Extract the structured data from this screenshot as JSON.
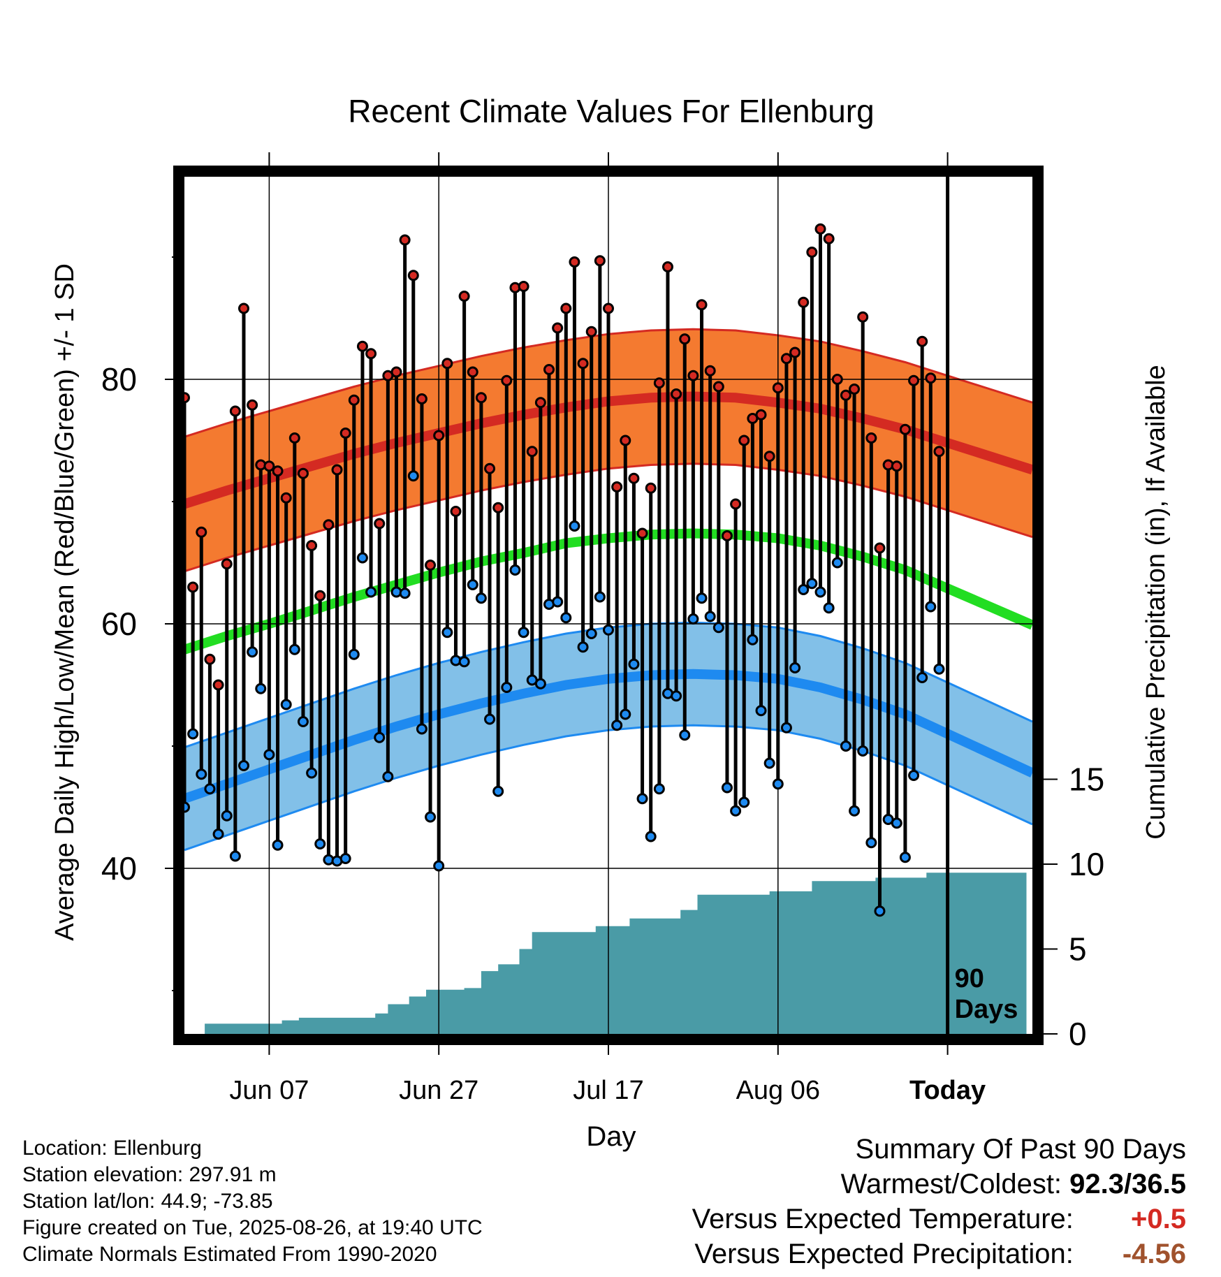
{
  "chart_data": {
    "type": "line",
    "title": "Recent Climate Values For Ellenburg",
    "xlabel": "Day",
    "ylabel": "Average Daily High/Low/Mean (Red/Blue/Green) +/- 1 SD",
    "y2label": "Cumulative Precipitation (in), If Available",
    "ylim": [
      27,
      98
    ],
    "y2lim": [
      0,
      38
    ],
    "yticks": [
      40,
      60,
      80
    ],
    "y2ticks": [
      0,
      5,
      10,
      15
    ],
    "grid": true,
    "x_tick_labels": [
      {
        "day": 10,
        "label": "Jun 07"
      },
      {
        "day": 30,
        "label": "Jun 27"
      },
      {
        "day": 50,
        "label": "Jul 17"
      },
      {
        "day": 70,
        "label": "Aug 06"
      },
      {
        "day": 90,
        "label": "Today"
      }
    ],
    "xlim": [
      0,
      100
    ],
    "today_day": 90,
    "today_annotation": "90\nDays",
    "days_first": 0,
    "daily_highs": [
      78.5,
      63,
      67.5,
      57.1,
      55,
      64.9,
      77.4,
      85.8,
      77.9,
      73,
      72.9,
      72.5,
      70.3,
      75.2,
      72.3,
      66.4,
      62.3,
      68.1,
      72.6,
      75.6,
      78.3,
      82.7,
      82.1,
      68.2,
      80.3,
      80.6,
      91.4,
      88.5,
      78.4,
      64.8,
      75.4,
      81.3,
      69.2,
      86.8,
      80.6,
      78.5,
      72.7,
      69.5,
      79.9,
      87.5,
      87.6,
      74.1,
      78.1,
      80.8,
      84.2,
      85.8,
      89.6,
      81.3,
      83.9,
      89.7,
      85.8,
      71.2,
      75,
      71.9,
      67.4,
      71.1,
      79.7,
      89.2,
      78.8,
      83.3,
      80.3,
      86.1,
      80.7,
      79.4,
      67.2,
      69.8,
      75,
      76.8,
      77.1,
      73.7,
      79.3,
      81.7,
      82.2,
      86.3,
      90.4,
      92.3,
      91.5,
      80,
      78.7,
      79.2,
      85.1,
      75.2,
      66.2,
      73,
      72.9,
      75.9,
      79.9,
      83.1,
      80.1,
      74.1
    ],
    "daily_lows": [
      45,
      51,
      47.7,
      46.5,
      42.8,
      44.3,
      41,
      48.4,
      57.7,
      54.7,
      49.3,
      41.9,
      53.4,
      57.9,
      52,
      47.8,
      42,
      40.7,
      40.6,
      40.8,
      57.5,
      65.4,
      62.6,
      50.7,
      47.5,
      62.6,
      62.5,
      72.1,
      51.4,
      44.2,
      40.2,
      59.3,
      57,
      56.9,
      63.2,
      62.1,
      52.2,
      46.3,
      54.8,
      64.4,
      59.3,
      55.4,
      55.1,
      61.6,
      61.8,
      60.5,
      68,
      58.1,
      59.2,
      62.2,
      59.5,
      51.7,
      52.6,
      56.7,
      45.7,
      42.6,
      46.5,
      54.3,
      54.1,
      50.9,
      60.4,
      62.1,
      60.6,
      59.7,
      46.6,
      44.7,
      45.4,
      58.7,
      52.9,
      48.6,
      46.9,
      51.5,
      56.4,
      62.8,
      63.3,
      62.6,
      61.3,
      65,
      50,
      44.7,
      49.6,
      42.1,
      36.5,
      44,
      43.7,
      40.9,
      47.6,
      55.6,
      61.4,
      56.3
    ],
    "series": [
      {
        "name": "Average Daily High",
        "color": "#D42A22",
        "band_color": "#F47A30",
        "sd": 5.5,
        "mean": [
          69.8,
          70.9,
          71.9,
          72.9,
          73.9,
          74.8,
          75.6,
          76.4,
          77.1,
          77.7,
          78.2,
          78.5,
          78.6,
          78.5,
          78.1,
          77.6,
          76.8,
          75.9,
          74.8,
          73.7
        ]
      },
      {
        "name": "Average Daily Low",
        "color": "#1E8AF0",
        "band_color": "#82C0E8",
        "sd": 4.2,
        "mean": [
          45.7,
          46.9,
          48.1,
          49.3,
          50.5,
          51.6,
          52.6,
          53.5,
          54.3,
          55.0,
          55.5,
          55.8,
          55.9,
          55.8,
          55.5,
          54.8,
          53.8,
          52.6,
          51.0,
          49.4
        ]
      },
      {
        "name": "Average Daily Mean",
        "color": "#22DD22",
        "mean": [
          57.9,
          59.0,
          60.0,
          61.1,
          62.2,
          63.2,
          64.2,
          65.1,
          65.8,
          66.6,
          67.0,
          67.3,
          67.4,
          67.3,
          67.0,
          66.4,
          65.5,
          64.4,
          62.9,
          61.4
        ]
      }
    ],
    "normals_days": [
      0,
      5,
      10,
      15,
      20,
      25,
      30,
      35,
      40,
      45,
      50,
      55,
      60,
      65,
      70,
      75,
      80,
      85,
      90,
      95,
      100
    ],
    "precip_color": "#4A9BA6",
    "cumulative_precip": [
      {
        "day": 0,
        "value": 0
      },
      {
        "day": 2.4,
        "value": 0.6
      },
      {
        "day": 11.5,
        "value": 0.8
      },
      {
        "day": 13.5,
        "value": 0.95
      },
      {
        "day": 22.5,
        "value": 1.2
      },
      {
        "day": 24,
        "value": 1.75
      },
      {
        "day": 26.5,
        "value": 2.2
      },
      {
        "day": 28.5,
        "value": 2.6
      },
      {
        "day": 33,
        "value": 2.7
      },
      {
        "day": 35,
        "value": 3.7
      },
      {
        "day": 37,
        "value": 4.1
      },
      {
        "day": 39.5,
        "value": 5.0
      },
      {
        "day": 41,
        "value": 6.0
      },
      {
        "day": 48.5,
        "value": 6.35
      },
      {
        "day": 52.5,
        "value": 6.8
      },
      {
        "day": 58.5,
        "value": 7.3
      },
      {
        "day": 60.5,
        "value": 8.2
      },
      {
        "day": 69,
        "value": 8.4
      },
      {
        "day": 74,
        "value": 9.0
      },
      {
        "day": 81.5,
        "value": 9.2
      },
      {
        "day": 87.5,
        "value": 9.5
      },
      {
        "day": 99.3,
        "value": 9.5
      }
    ]
  },
  "info": {
    "location": "Location: Ellenburg",
    "elevation": "Station elevation: 297.91 m",
    "latlon": "Station lat/lon: 44.9; -73.85",
    "created": "Figure created on Tue, 2025-08-26, at 19:40 UTC",
    "normals": "Climate Normals Estimated From 1990-2020"
  },
  "summary": {
    "title": "Summary Of Past 90 Days",
    "warm_cold_label": "Warmest/Coldest:",
    "warm_cold_value": "92.3/36.5",
    "temp_label": "Versus Expected Temperature:",
    "temp_value": "+0.5",
    "temp_color": "#D42A22",
    "precip_label": "Versus Expected Precipitation:",
    "precip_value": "-4.56",
    "precip_value_color": "#A0522D"
  }
}
